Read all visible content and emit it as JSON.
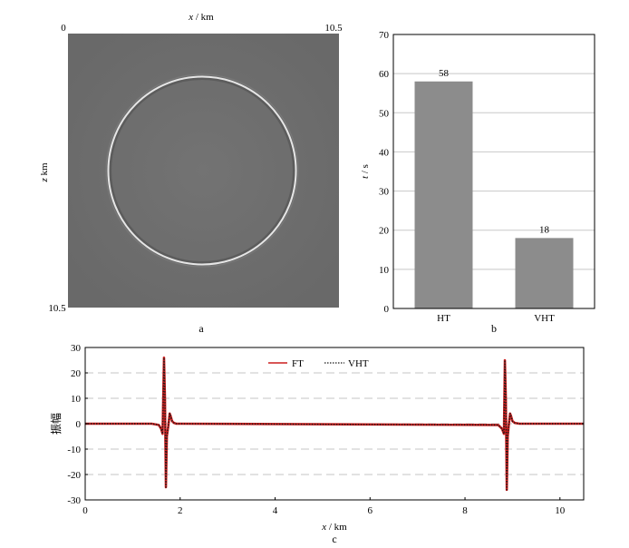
{
  "panel_a": {
    "caption": "a",
    "xlabel_var": "x",
    "xlabel_unit": " / km",
    "zlabel_var": "z",
    "zlabel_unit": " km",
    "origin_label": "0",
    "x_end_label": "10.5",
    "z_end_label": "10.5",
    "background_color": "#6e6e6e",
    "wavefront_color": "#e6e6e6"
  },
  "panel_b": {
    "caption": "b",
    "ylabel_var": "t",
    "ylabel_unit": " / s",
    "bar_color": "#8c8c8c",
    "chart_data": {
      "type": "bar",
      "categories": [
        "HT",
        "VHT"
      ],
      "values": [
        58,
        18
      ],
      "data_labels": [
        "58",
        "18"
      ],
      "ylim": [
        0,
        70
      ],
      "yticks": [
        0,
        10,
        20,
        30,
        40,
        50,
        60,
        70
      ],
      "ytick_labels": [
        "0",
        "10",
        "20",
        "30",
        "40",
        "50",
        "60",
        "70"
      ],
      "grid": true
    }
  },
  "panel_c": {
    "caption": "c",
    "ylabel": "振幅",
    "xlabel_var": "x",
    "xlabel_unit": " / km",
    "legend": {
      "placement": "top-center",
      "items": [
        "FT",
        "VHT"
      ]
    },
    "colors": {
      "FT": "#cc1f1f",
      "VHT": "#1a1a1a"
    },
    "chart_data": {
      "type": "line",
      "xlim": [
        0,
        10.5
      ],
      "ylim": [
        -30,
        30
      ],
      "xticks": [
        0,
        2,
        4,
        6,
        8,
        10
      ],
      "xtick_labels": [
        "0",
        "2",
        "4",
        "6",
        "8",
        "10"
      ],
      "yticks": [
        -30,
        -20,
        -10,
        0,
        10,
        20,
        30
      ],
      "ytick_labels": [
        "-30",
        "-20",
        "-10",
        "0",
        "10",
        "20",
        "30"
      ],
      "grid": "horizontal-dashed",
      "series": [
        {
          "name": "FT",
          "style": "solid",
          "x": [
            0,
            1.4,
            1.55,
            1.6,
            1.63,
            1.66,
            1.68,
            1.7,
            1.72,
            1.75,
            1.78,
            1.8,
            1.83,
            1.87,
            1.92,
            2.0,
            8.7,
            8.78,
            8.82,
            8.84,
            8.86,
            8.88,
            8.9,
            8.92,
            8.95,
            8.97,
            9.0,
            9.05,
            9.15,
            10.5
          ],
          "y": [
            0,
            0,
            -0.5,
            -2,
            -4,
            26,
            10,
            -25,
            -5,
            -1,
            4,
            3,
            1,
            0.3,
            0,
            0,
            -0.5,
            -2,
            -4,
            25,
            10,
            -26,
            -5,
            -1,
            4,
            3,
            1,
            0.3,
            0,
            0
          ]
        },
        {
          "name": "VHT",
          "style": "dotted",
          "x": [
            0,
            1.4,
            1.55,
            1.6,
            1.63,
            1.66,
            1.68,
            1.7,
            1.72,
            1.75,
            1.78,
            1.8,
            1.83,
            1.87,
            1.92,
            2.0,
            8.7,
            8.78,
            8.82,
            8.84,
            8.86,
            8.88,
            8.9,
            8.92,
            8.95,
            8.97,
            9.0,
            9.05,
            9.15,
            10.5
          ],
          "y": [
            0,
            0,
            -0.5,
            -2,
            -4,
            26,
            10,
            -25,
            -5,
            -1,
            4,
            3,
            1,
            0.3,
            0,
            0,
            -0.5,
            -2,
            -4,
            25,
            10,
            -26,
            -5,
            -1,
            4,
            3,
            1,
            0.3,
            0,
            0
          ]
        }
      ]
    }
  }
}
